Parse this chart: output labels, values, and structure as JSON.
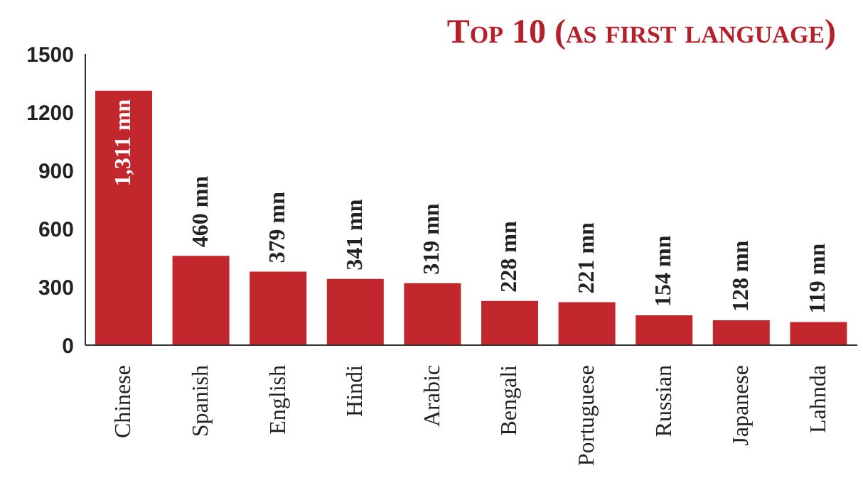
{
  "chart_data": {
    "type": "bar",
    "title": "Top 10 (as first language)",
    "categories": [
      "Chinese",
      "Spanish",
      "English",
      "Hindi",
      "Arabic",
      "Bengali",
      "Portuguese",
      "Russian",
      "Japanese",
      "Lahnda"
    ],
    "values": [
      1311,
      460,
      379,
      341,
      319,
      228,
      221,
      154,
      128,
      119
    ],
    "value_labels": [
      "1,311 mn",
      "460 mn",
      "379 mn",
      "341 mn",
      "319 mn",
      "228 mn",
      "221 mn",
      "154 mn",
      "128 mn",
      "119 mn"
    ],
    "color": "#c1272d",
    "ylim": [
      0,
      1500
    ],
    "yticks": [
      0,
      300,
      600,
      900,
      1200,
      1500
    ],
    "grid": false,
    "legend": false
  }
}
